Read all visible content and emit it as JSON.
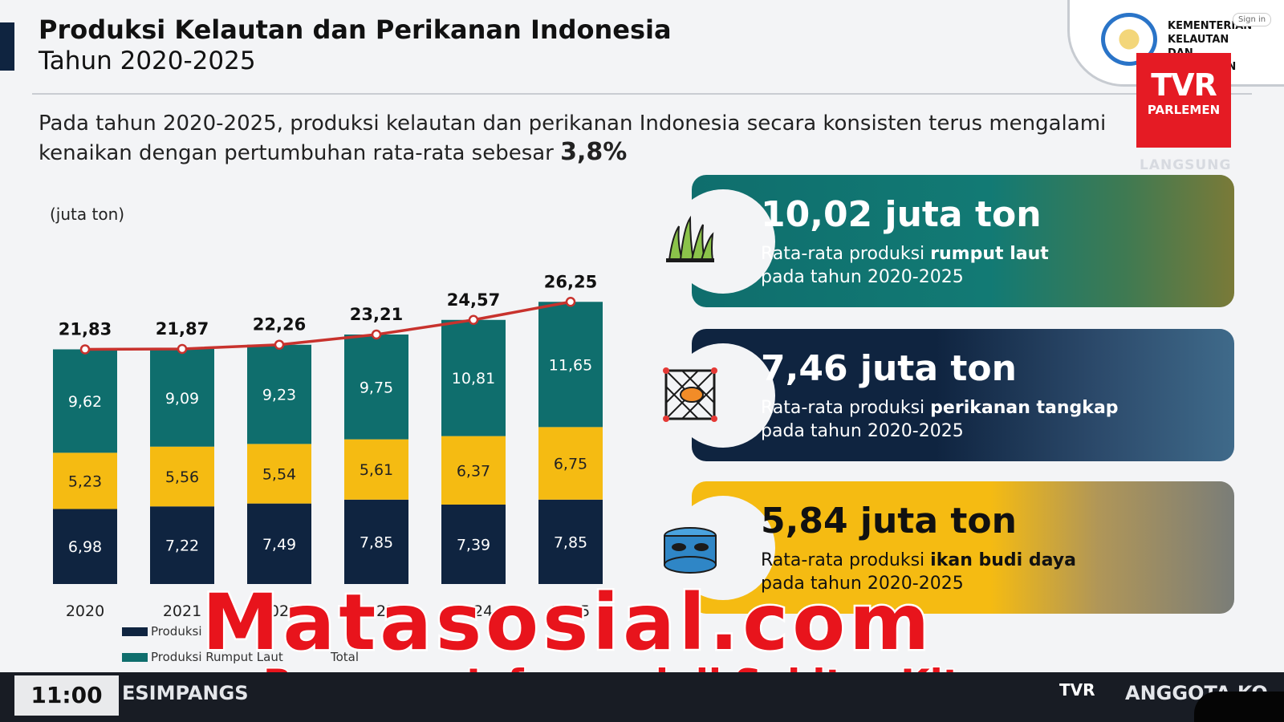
{
  "header": {
    "title": "Produksi Kelautan dan Perikanan Indonesia",
    "subtitle": "Tahun 2020-2025",
    "intro_text": "Pada tahun 2020-2025, produksi kelautan dan perikanan Indonesia secara konsisten terus mengalami kenaikan dengan pertumbuhan rata-rata sebesar ",
    "intro_growth": "3,8%"
  },
  "logos": {
    "ministry": "KEMENTERIAN KELAUTAN DAN PERIKANAN",
    "sign_in": "Sign in",
    "tv_brand_top": "TVR",
    "tv_brand_bottom": "PARLEMEN",
    "live_label": "LANGSUNG"
  },
  "chart_data": {
    "type": "bar",
    "stacked": true,
    "unit_label": "(juta ton)",
    "categories": [
      "2020",
      "2021",
      "2022",
      "2023",
      "2024",
      "2025"
    ],
    "series": [
      {
        "name": "Produksi",
        "color": "#0f2440",
        "values": [
          6.98,
          7.22,
          7.49,
          7.85,
          7.39,
          7.85
        ],
        "labels": [
          "6,98",
          "7,22",
          "7,49",
          "7,85",
          "7,39",
          "7,85"
        ]
      },
      {
        "name": "",
        "color": "#f5bb12",
        "values": [
          5.23,
          5.56,
          5.54,
          5.61,
          6.37,
          6.75
        ],
        "labels": [
          "5,23",
          "5,56",
          "5,54",
          "5,61",
          "6,37",
          "6,75"
        ]
      },
      {
        "name": "Produksi Rumput Laut",
        "color": "#0f6e6d",
        "values": [
          9.62,
          9.09,
          9.23,
          9.75,
          10.81,
          11.65
        ],
        "labels": [
          "9,62",
          "9,09",
          "9,23",
          "9,75",
          "10,81",
          "11,65"
        ]
      }
    ],
    "total": {
      "name": "Total",
      "color": "#c8322d",
      "values": [
        21.83,
        21.87,
        22.26,
        23.21,
        24.57,
        26.25
      ],
      "labels": [
        "21,83",
        "21,87",
        "22,26",
        "23,21",
        "24,57",
        "26,25"
      ]
    },
    "ylim": [
      0,
      28
    ]
  },
  "cards": [
    {
      "amount": "10,02 juta ton",
      "desc_prefix": "Rata-rata produksi ",
      "desc_bold": "rumput laut",
      "desc_suffix": "pada tahun 2020-2025",
      "icon": "seaweed-icon"
    },
    {
      "amount": "7,46 juta ton",
      "desc_prefix": "Rata-rata produksi ",
      "desc_bold": "perikanan tangkap",
      "desc_suffix": "pada tahun 2020-2025",
      "icon": "fishing-net-icon"
    },
    {
      "amount": "5,84 juta ton",
      "desc_prefix": "Rata-rata produksi ",
      "desc_bold": "ikan budi daya",
      "desc_suffix": "pada tahun 2020-2025",
      "icon": "fish-pond-icon"
    }
  ],
  "watermark": {
    "title": "Matasosial.com",
    "tagline": "Beragam Informasi di Sekitar Kita"
  },
  "ticker": {
    "time": "11:00",
    "text_left": "ESIMPANGS",
    "logo": "TVR",
    "text_right": "ANGGOTA KO"
  }
}
